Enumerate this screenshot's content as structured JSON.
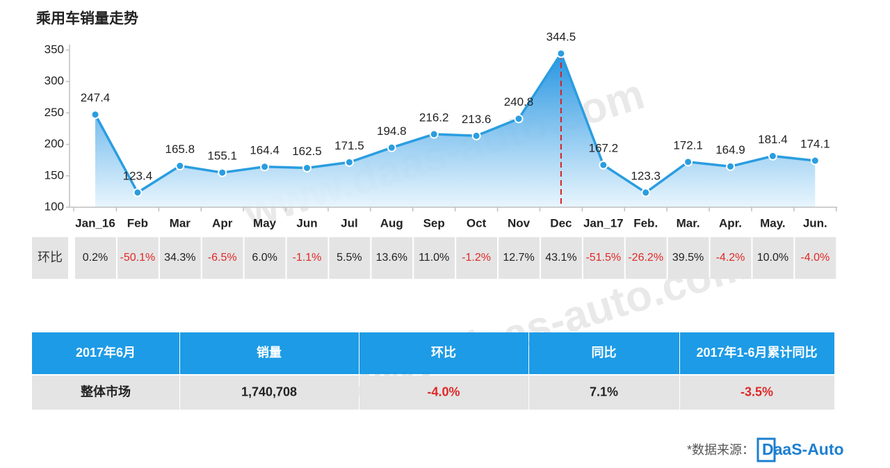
{
  "chart_data": {
    "type": "line",
    "title": "乘用车销量走势",
    "categories": [
      "Jan_16",
      "Feb",
      "Mar",
      "Apr",
      "May",
      "Jun",
      "Jul",
      "Aug",
      "Sep",
      "Oct",
      "Nov",
      "Dec",
      "Jan_17",
      "Feb.",
      "Mar.",
      "Apr.",
      "May.",
      "Jun."
    ],
    "values": [
      247.4,
      123.4,
      165.8,
      155.1,
      164.4,
      162.5,
      171.5,
      194.8,
      216.2,
      213.6,
      240.8,
      344.5,
      167.2,
      123.3,
      172.1,
      164.9,
      181.4,
      174.1
    ],
    "color": "#2a9de0",
    "ylim": [
      100,
      350
    ],
    "yticks": [
      100,
      150,
      200,
      250,
      300,
      350
    ]
  },
  "mom_row": {
    "label": "环比",
    "cells": [
      "0.2%",
      "-50.1%",
      "34.3%",
      "-6.5%",
      "6.0%",
      "-1.1%",
      "5.5%",
      "13.6%",
      "11.0%",
      "-1.2%",
      "12.7%",
      "43.1%",
      "-51.5%",
      "-26.2%",
      "39.5%",
      "-4.2%",
      "10.0%",
      "-4.0%"
    ]
  },
  "table": {
    "header": [
      "2017年6月",
      "销量",
      "环比",
      "同比",
      "2017年1-6月累计同比"
    ],
    "rows": [
      [
        "整体市场",
        "1,740,708",
        "-4.0%",
        "7.1%",
        "-3.5%"
      ]
    ]
  },
  "watermark": "www.daas-auto.com",
  "source": {
    "label": "*数据来源：",
    "logo": "DaaS-Auto"
  }
}
